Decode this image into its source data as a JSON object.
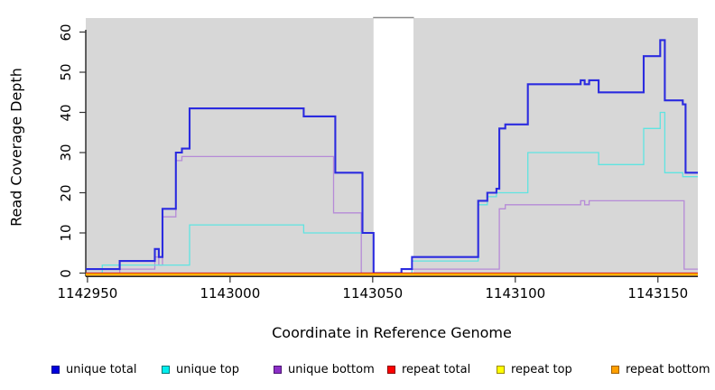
{
  "chart_data": {
    "type": "line",
    "subtype": "step-coverage",
    "title": "",
    "xlabel": "Coordinate in Reference Genome",
    "ylabel": "Read Coverage Depth",
    "xlim": [
      1142949.4,
      1143164
    ],
    "ylim": [
      0,
      63.5
    ],
    "x_ticks": [
      1142950,
      1143000,
      1143050,
      1143100,
      1143150
    ],
    "y_ticks": [
      0,
      10,
      20,
      30,
      40,
      50,
      60
    ],
    "grid": false,
    "plot_background": "#d7d7d7",
    "axis_color": "#000000",
    "gap_band": {
      "x_start": 1143050.3,
      "x_end": 1143064.3,
      "fill": "#ffffff",
      "cap_color": "#8a8a8a"
    },
    "legend_position": "bottom",
    "draw_order": [
      2,
      1,
      0,
      3,
      4,
      5
    ],
    "series": [
      {
        "name": "unique total",
        "line_color": "#2b2bdf",
        "line_width": 2.1,
        "legend_fill": "#0000dd",
        "legend_border": "#000088",
        "steps": [
          [
            1142949.4,
            1
          ],
          [
            1142961.3,
            3
          ],
          [
            1142973.6,
            6
          ],
          [
            1142975.0,
            4
          ],
          [
            1142976.3,
            16
          ],
          [
            1142981.0,
            30
          ],
          [
            1142983.1,
            31
          ],
          [
            1142985.8,
            41
          ],
          [
            1143025.8,
            39
          ],
          [
            1143036.9,
            25
          ],
          [
            1143046.4,
            10
          ],
          [
            1143050.3,
            0
          ],
          [
            1143060.1,
            1
          ],
          [
            1143063.8,
            4
          ],
          [
            1143087.0,
            18
          ],
          [
            1143090.2,
            20
          ],
          [
            1143093.4,
            21
          ],
          [
            1143094.4,
            36
          ],
          [
            1143096.5,
            37
          ],
          [
            1143104.4,
            47
          ],
          [
            1143122.9,
            48
          ],
          [
            1143124.3,
            47
          ],
          [
            1143125.9,
            48
          ],
          [
            1143129.2,
            45
          ],
          [
            1143145.0,
            54
          ],
          [
            1143150.8,
            58
          ],
          [
            1143152.4,
            43
          ],
          [
            1143158.7,
            42
          ],
          [
            1143159.7,
            25
          ]
        ]
      },
      {
        "name": "unique top",
        "line_color": "#5fe4e1",
        "line_width": 1.3,
        "legend_fill": "#00eeee",
        "legend_border": "#007777",
        "steps": [
          [
            1142949.4,
            0
          ],
          [
            1142955.2,
            2
          ],
          [
            1142985.8,
            12
          ],
          [
            1143025.8,
            10
          ],
          [
            1143050.3,
            0
          ],
          [
            1143063.8,
            3
          ],
          [
            1143087.0,
            17
          ],
          [
            1143090.2,
            19
          ],
          [
            1143093.4,
            20
          ],
          [
            1143104.4,
            30
          ],
          [
            1143129.2,
            27
          ],
          [
            1143145.0,
            36
          ],
          [
            1143150.8,
            40
          ],
          [
            1143152.4,
            25
          ],
          [
            1143158.7,
            24
          ]
        ]
      },
      {
        "name": "unique bottom",
        "line_color": "#b68ad7",
        "line_width": 1.3,
        "legend_fill": "#8c2fc7",
        "legend_border": "#4a1470",
        "steps": [
          [
            1142949.4,
            0
          ],
          [
            1142961.3,
            1
          ],
          [
            1142973.6,
            4
          ],
          [
            1142975.0,
            2
          ],
          [
            1142976.3,
            14
          ],
          [
            1142981.0,
            28
          ],
          [
            1142983.1,
            29
          ],
          [
            1143036.3,
            15
          ],
          [
            1143046.0,
            0
          ],
          [
            1143063.8,
            1
          ],
          [
            1143094.4,
            16
          ],
          [
            1143096.5,
            17
          ],
          [
            1143122.9,
            18
          ],
          [
            1143124.3,
            17
          ],
          [
            1143125.9,
            18
          ],
          [
            1143159.2,
            1
          ]
        ]
      },
      {
        "name": "repeat total",
        "line_color": "#e01010",
        "line_width": 1.3,
        "legend_fill": "#ff0000",
        "legend_border": "#880000",
        "steps": [
          [
            1142949.4,
            0
          ]
        ]
      },
      {
        "name": "repeat top",
        "line_color": "#ffee00",
        "line_width": 1.3,
        "legend_fill": "#ffff00",
        "legend_border": "#998800",
        "steps": [
          [
            1142949.4,
            0
          ]
        ]
      },
      {
        "name": "repeat bottom",
        "line_color": "#ff9d00",
        "line_width": 1.7,
        "legend_fill": "#ffa000",
        "legend_border": "#a06000",
        "steps": [
          [
            1142949.4,
            0
          ]
        ]
      }
    ]
  }
}
